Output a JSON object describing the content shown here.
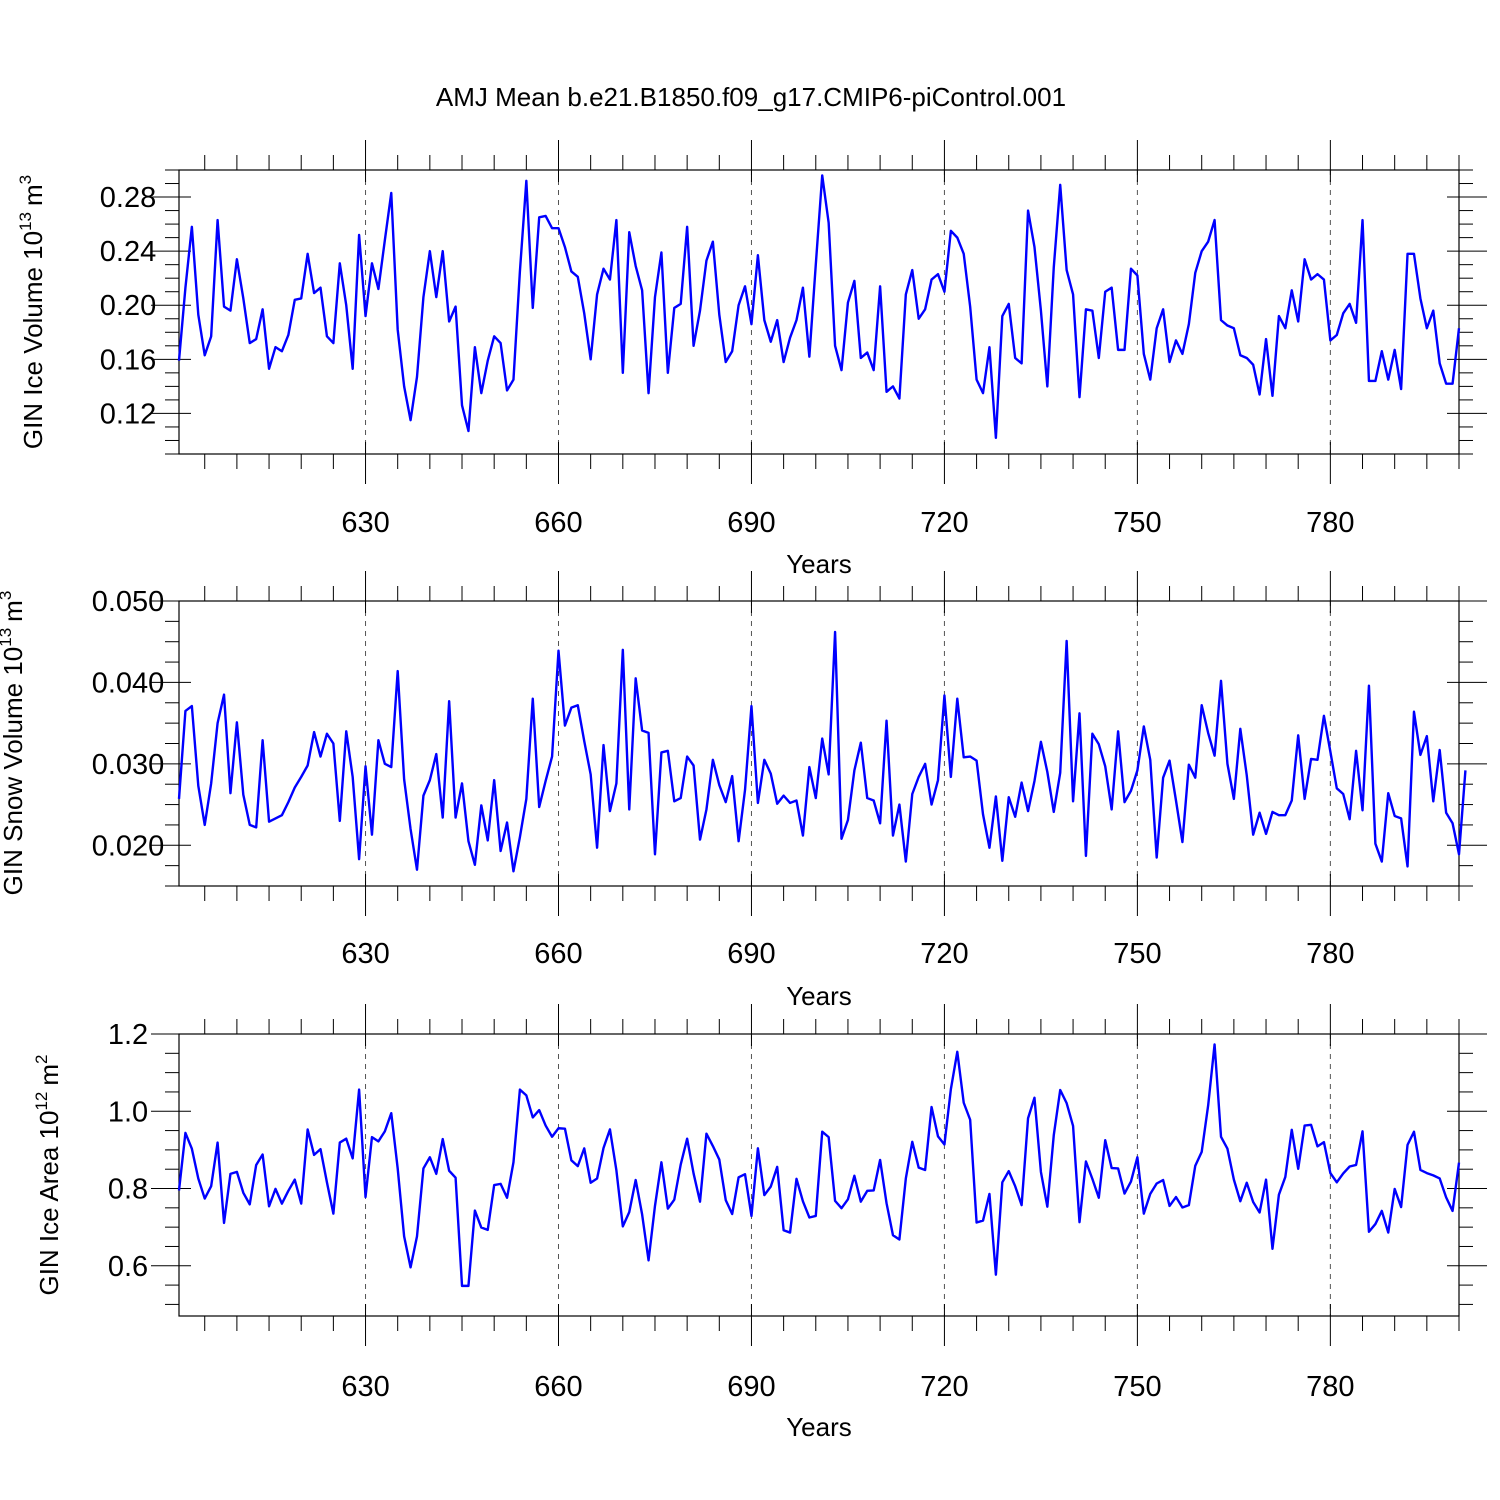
{
  "chart_data": {
    "type": "line",
    "title": "AMJ Mean b.e21.B1850.f09_g17.CMIP6-piControl.001",
    "x_start": 601,
    "x_end": 800,
    "xlim": [
      601,
      800
    ],
    "x_ticks": [
      630,
      660,
      690,
      720,
      750,
      780
    ],
    "x_tick_labels": [
      "630",
      "660",
      "690",
      "720",
      "750",
      "780"
    ],
    "x_grid": "dashed vertical at major ticks",
    "xlabel": "Years",
    "panels": [
      {
        "ylabel": "GIN Ice Volume 10",
        "ylabel_sup": "13",
        "ylabel_unit": "m",
        "ylabel_unit_sup": "3",
        "ylim": [
          0.09,
          0.3
        ],
        "y_ticks": [
          0.12,
          0.16,
          0.2,
          0.24,
          0.28
        ],
        "y_tick_labels": [
          "0.12",
          "0.16",
          "0.20",
          "0.24",
          "0.28"
        ],
        "y_minor_step": 0.01,
        "values": [
          0.159,
          0.213,
          0.258,
          0.193,
          0.163,
          0.177,
          0.263,
          0.199,
          0.196,
          0.234,
          0.205,
          0.172,
          0.175,
          0.197,
          0.153,
          0.169,
          0.166,
          0.178,
          0.204,
          0.205,
          0.238,
          0.209,
          0.213,
          0.177,
          0.172,
          0.231,
          0.2,
          0.153,
          0.252,
          0.192,
          0.231,
          0.212,
          0.248,
          0.283,
          0.182,
          0.14,
          0.115,
          0.147,
          0.206,
          0.24,
          0.206,
          0.24,
          0.188,
          0.199,
          0.126,
          0.107,
          0.169,
          0.135,
          0.159,
          0.177,
          0.172,
          0.137,
          0.145,
          0.225,
          0.292,
          0.198,
          0.265,
          0.266,
          0.257,
          0.257,
          0.243,
          0.225,
          0.221,
          0.194,
          0.16,
          0.208,
          0.227,
          0.219,
          0.263,
          0.15,
          0.254,
          0.229,
          0.211,
          0.135,
          0.206,
          0.239,
          0.15,
          0.198,
          0.201,
          0.258,
          0.17,
          0.196,
          0.233,
          0.247,
          0.193,
          0.158,
          0.166,
          0.2,
          0.214,
          0.186,
          0.237,
          0.189,
          0.173,
          0.189,
          0.158,
          0.176,
          0.189,
          0.213,
          0.162,
          0.23,
          0.296,
          0.261,
          0.17,
          0.152,
          0.202,
          0.218,
          0.161,
          0.165,
          0.152,
          0.214,
          0.136,
          0.14,
          0.131,
          0.208,
          0.226,
          0.19,
          0.197,
          0.219,
          0.223,
          0.21,
          0.255,
          0.25,
          0.238,
          0.199,
          0.145,
          0.135,
          0.169,
          0.102,
          0.192,
          0.201,
          0.161,
          0.157,
          0.27,
          0.243,
          0.196,
          0.14,
          0.228,
          0.289,
          0.226,
          0.208,
          0.132,
          0.197,
          0.196,
          0.161,
          0.21,
          0.213,
          0.167,
          0.167,
          0.227,
          0.222,
          0.164,
          0.145,
          0.183,
          0.197,
          0.158,
          0.174,
          0.164,
          0.186,
          0.224,
          0.24,
          0.247,
          0.263,
          0.189,
          0.185,
          0.183,
          0.163,
          0.161,
          0.156,
          0.134,
          0.175,
          0.133,
          0.192,
          0.183,
          0.211,
          0.188,
          0.234,
          0.219,
          0.223,
          0.219,
          0.174,
          0.178,
          0.194,
          0.201,
          0.187,
          0.263,
          0.144,
          0.144,
          0.166,
          0.145,
          0.167,
          0.138,
          0.238,
          0.238,
          0.205,
          0.183,
          0.196,
          0.157,
          0.142,
          0.142,
          0.183
        ]
      },
      {
        "ylabel": "GIN Snow Volume 10",
        "ylabel_sup": "13",
        "ylabel_unit": "m",
        "ylabel_unit_sup": "3",
        "ylim": [
          0.015,
          0.05
        ],
        "y_ticks": [
          0.02,
          0.03,
          0.04,
          0.05
        ],
        "y_tick_labels": [
          "0.020",
          "0.030",
          "0.040",
          "0.050"
        ],
        "y_minor_step": 0.0025,
        "values": [
          0.0257,
          0.0365,
          0.0371,
          0.0273,
          0.0225,
          0.0276,
          0.035,
          0.0385,
          0.0264,
          0.0351,
          0.0262,
          0.0225,
          0.0222,
          0.0329,
          0.0229,
          0.0233,
          0.0237,
          0.0253,
          0.0271,
          0.0284,
          0.0298,
          0.0339,
          0.0309,
          0.0337,
          0.0325,
          0.023,
          0.034,
          0.0284,
          0.0183,
          0.0297,
          0.0213,
          0.0329,
          0.03,
          0.0296,
          0.0414,
          0.0281,
          0.022,
          0.017,
          0.0261,
          0.028,
          0.0312,
          0.0234,
          0.0377,
          0.0234,
          0.0276,
          0.0205,
          0.0176,
          0.0249,
          0.0206,
          0.028,
          0.0193,
          0.0228,
          0.0168,
          0.021,
          0.0257,
          0.038,
          0.0247,
          0.0279,
          0.0309,
          0.0439,
          0.0347,
          0.0369,
          0.0372,
          0.0328,
          0.0287,
          0.0197,
          0.0323,
          0.0242,
          0.0276,
          0.044,
          0.0244,
          0.0405,
          0.0341,
          0.0338,
          0.0189,
          0.0314,
          0.0316,
          0.0254,
          0.0258,
          0.0309,
          0.0298,
          0.0207,
          0.0244,
          0.0305,
          0.0274,
          0.0253,
          0.0285,
          0.0205,
          0.0268,
          0.0371,
          0.0252,
          0.0305,
          0.0288,
          0.0251,
          0.0261,
          0.0252,
          0.0255,
          0.0212,
          0.0296,
          0.0258,
          0.0331,
          0.0287,
          0.0462,
          0.0208,
          0.0231,
          0.0292,
          0.0326,
          0.0258,
          0.0255,
          0.0227,
          0.0353,
          0.0212,
          0.025,
          0.018,
          0.0263,
          0.0284,
          0.03,
          0.025,
          0.028,
          0.0384,
          0.0284,
          0.038,
          0.0308,
          0.0309,
          0.0304,
          0.0238,
          0.0197,
          0.026,
          0.0181,
          0.0259,
          0.0235,
          0.0277,
          0.0242,
          0.0279,
          0.0327,
          0.029,
          0.0241,
          0.0289,
          0.0451,
          0.0254,
          0.0362,
          0.0187,
          0.0337,
          0.0324,
          0.0297,
          0.0244,
          0.034,
          0.0253,
          0.0267,
          0.0292,
          0.0346,
          0.0305,
          0.0185,
          0.0283,
          0.0304,
          0.0255,
          0.0204,
          0.0299,
          0.0283,
          0.0372,
          0.0338,
          0.031,
          0.0402,
          0.03,
          0.0257,
          0.0343,
          0.0286,
          0.0213,
          0.024,
          0.0214,
          0.0241,
          0.0237,
          0.0237,
          0.0255,
          0.0335,
          0.0257,
          0.0306,
          0.0305,
          0.0359,
          0.0315,
          0.027,
          0.0263,
          0.0232,
          0.0316,
          0.0243,
          0.0396,
          0.0202,
          0.018,
          0.0264,
          0.0236,
          0.0233,
          0.0174,
          0.0364,
          0.0311,
          0.0334,
          0.0254,
          0.0317,
          0.024,
          0.0227,
          0.0189,
          0.0292
        ]
      },
      {
        "ylabel": "GIN Ice Area 10",
        "ylabel_sup": "12",
        "ylabel_unit": "m",
        "ylabel_unit_sup": "2",
        "ylim": [
          0.47,
          1.2
        ],
        "y_ticks": [
          0.6,
          0.8,
          1.0,
          1.2
        ],
        "y_tick_labels": [
          "0.6",
          "0.8",
          "1.0",
          "1.2"
        ],
        "y_minor_step": 0.05,
        "values": [
          0.795,
          0.944,
          0.903,
          0.826,
          0.774,
          0.806,
          0.919,
          0.711,
          0.838,
          0.843,
          0.789,
          0.759,
          0.861,
          0.888,
          0.754,
          0.799,
          0.761,
          0.794,
          0.823,
          0.761,
          0.953,
          0.887,
          0.902,
          0.816,
          0.735,
          0.919,
          0.929,
          0.878,
          1.056,
          0.778,
          0.933,
          0.922,
          0.948,
          0.995,
          0.852,
          0.676,
          0.596,
          0.676,
          0.852,
          0.881,
          0.838,
          0.928,
          0.846,
          0.828,
          0.548,
          0.548,
          0.743,
          0.699,
          0.693,
          0.809,
          0.812,
          0.776,
          0.868,
          1.056,
          1.041,
          0.984,
          1.003,
          0.963,
          0.934,
          0.956,
          0.955,
          0.873,
          0.858,
          0.904,
          0.815,
          0.826,
          0.905,
          0.953,
          0.847,
          0.702,
          0.739,
          0.822,
          0.733,
          0.614,
          0.755,
          0.868,
          0.748,
          0.771,
          0.862,
          0.929,
          0.839,
          0.766,
          0.942,
          0.91,
          0.875,
          0.77,
          0.734,
          0.829,
          0.837,
          0.729,
          0.904,
          0.783,
          0.805,
          0.856,
          0.692,
          0.686,
          0.825,
          0.767,
          0.725,
          0.729,
          0.947,
          0.933,
          0.768,
          0.749,
          0.772,
          0.833,
          0.766,
          0.794,
          0.795,
          0.874,
          0.762,
          0.679,
          0.668,
          0.826,
          0.921,
          0.854,
          0.848,
          1.011,
          0.935,
          0.914,
          1.057,
          1.154,
          1.022,
          0.978,
          0.712,
          0.717,
          0.786,
          0.577,
          0.816,
          0.845,
          0.806,
          0.757,
          0.982,
          1.035,
          0.843,
          0.753,
          0.938,
          1.055,
          1.021,
          0.962,
          0.713,
          0.87,
          0.825,
          0.776,
          0.925,
          0.853,
          0.852,
          0.787,
          0.818,
          0.881,
          0.735,
          0.786,
          0.813,
          0.822,
          0.755,
          0.778,
          0.751,
          0.757,
          0.859,
          0.895,
          1.015,
          1.173,
          0.934,
          0.903,
          0.823,
          0.767,
          0.815,
          0.765,
          0.738,
          0.823,
          0.644,
          0.784,
          0.83,
          0.952,
          0.851,
          0.963,
          0.965,
          0.909,
          0.92,
          0.84,
          0.816,
          0.839,
          0.857,
          0.861,
          0.948,
          0.688,
          0.708,
          0.742,
          0.686,
          0.799,
          0.752,
          0.913,
          0.947,
          0.848,
          0.84,
          0.834,
          0.826,
          0.777,
          0.742,
          0.867
        ]
      }
    ]
  }
}
